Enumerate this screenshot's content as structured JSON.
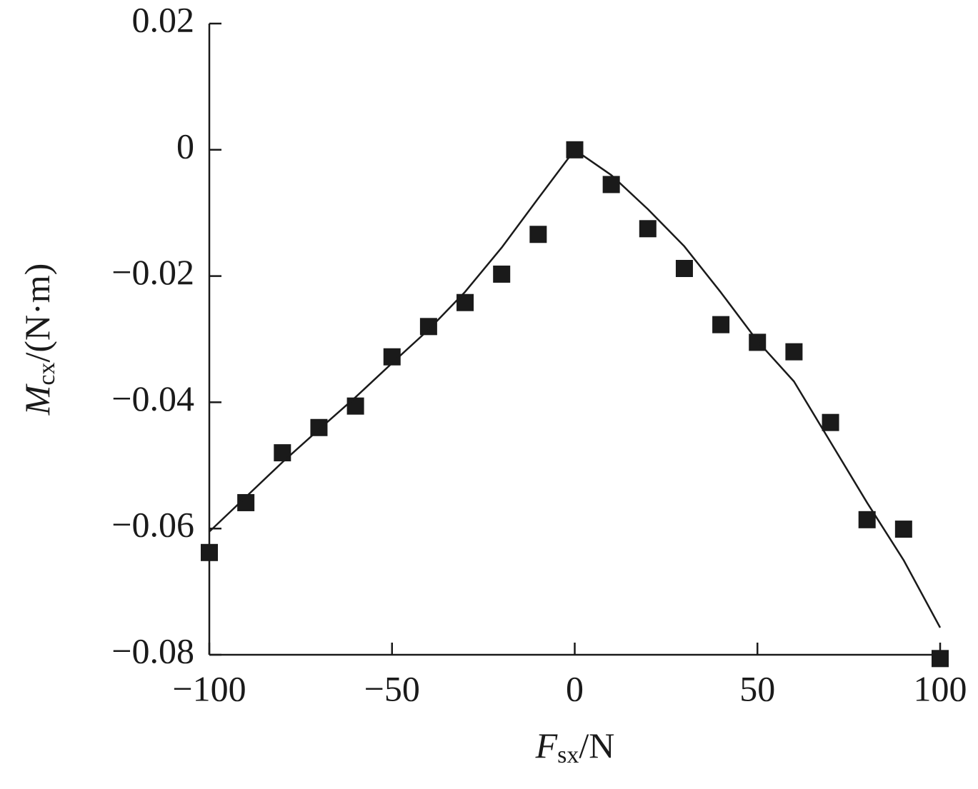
{
  "chart_data": {
    "type": "scatter",
    "xlabel": {
      "symbol": "F",
      "subscript": "sx",
      "unit": "/N"
    },
    "ylabel": {
      "symbol": "M",
      "subscript": "cx",
      "unit": "/(N·m)"
    },
    "xlim": [
      -100,
      100
    ],
    "xticks": [
      {
        "value": -100,
        "label": "−100"
      },
      {
        "value": -50,
        "label": "−50"
      },
      0,
      50,
      100
    ],
    "ylim": [
      -0.08,
      0.02
    ],
    "yticks": [
      0.02,
      0,
      {
        "value": -0.02,
        "label": "−0.02"
      },
      {
        "value": -0.04,
        "label": "−0.04"
      },
      {
        "value": -0.06,
        "label": "−0.06"
      },
      {
        "value": -0.08,
        "label": "−0.08"
      }
    ],
    "grid": false,
    "series": [
      {
        "type": "scatter",
        "color": "#1a1a1a",
        "x": [
          -100,
          -90,
          -80,
          -70,
          -60,
          -50,
          -40,
          -30,
          -20,
          -10,
          0,
          10,
          20,
          30,
          40,
          50,
          60,
          70,
          80,
          90,
          100
        ],
        "values": [
          -0.0638,
          -0.0559,
          -0.048,
          -0.044,
          -0.0406,
          -0.0328,
          -0.028,
          -0.0242,
          -0.0197,
          -0.0134,
          0,
          -0.0055,
          -0.0125,
          -0.0188,
          -0.0277,
          -0.0305,
          -0.032,
          -0.0432,
          -0.0586,
          -0.0601,
          -0.0806
        ]
      },
      {
        "type": "line",
        "color": "#1a1a1a",
        "x": [
          -100,
          -90,
          -80,
          -70,
          -60,
          -50,
          -40,
          -30,
          -20,
          -10,
          0,
          10,
          20,
          30,
          40,
          50,
          60,
          70,
          80,
          90,
          100
        ],
        "values": [
          -0.0605,
          -0.055,
          -0.0495,
          -0.0443,
          -0.0392,
          -0.0338,
          -0.0285,
          -0.0225,
          -0.0155,
          -0.0077,
          0,
          -0.004,
          -0.0094,
          -0.0153,
          -0.0226,
          -0.0303,
          -0.0367,
          -0.0463,
          -0.0559,
          -0.065,
          -0.0757
        ]
      }
    ]
  }
}
